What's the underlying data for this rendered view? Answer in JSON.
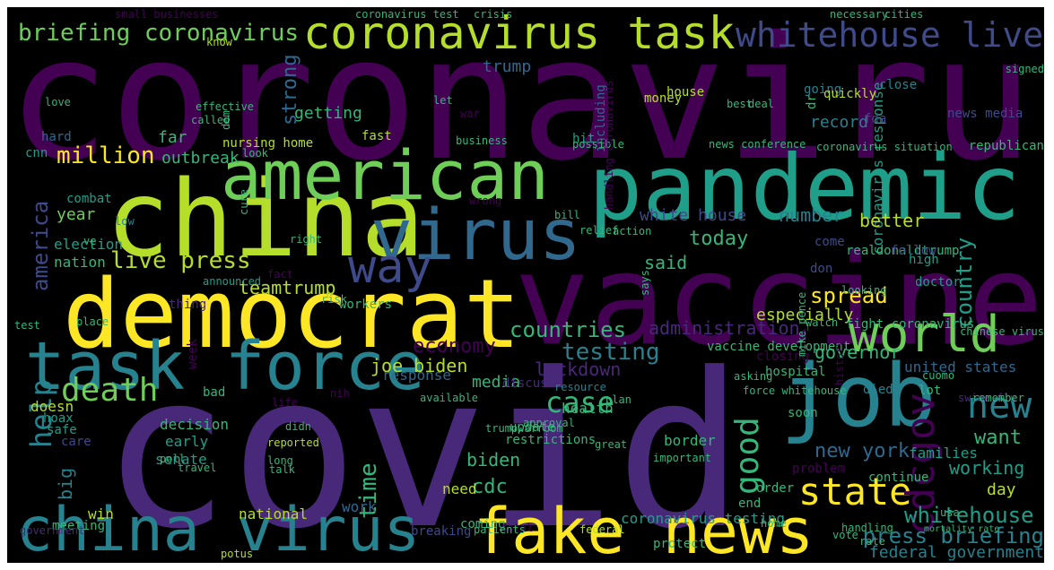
{
  "image": {
    "background": "#000000",
    "palette": {
      "P": "#440154",
      "I": "#482878",
      "B": "#3e4a89",
      "S": "#31688e",
      "T": "#26828e",
      "G": "#1f9e89",
      "L": "#35b779",
      "Y": "#6ece58",
      "K": "#b5de2b",
      "F": "#fde725"
    },
    "words": [
      {
        "t": "coronavirus",
        "c": "P"
      },
      {
        "t": "covid",
        "c": "I"
      },
      {
        "t": "vaccine",
        "c": "P"
      },
      {
        "t": "china",
        "c": "K"
      },
      {
        "t": "pandemic",
        "c": "G"
      },
      {
        "t": "democrat",
        "c": "F"
      },
      {
        "t": "american",
        "c": "Y"
      },
      {
        "t": "virus",
        "c": "S"
      },
      {
        "t": "task force",
        "c": "T"
      },
      {
        "t": "job",
        "c": "T"
      },
      {
        "t": "china virus",
        "c": "T"
      },
      {
        "t": "fake news",
        "c": "F"
      },
      {
        "t": "world",
        "c": "Y"
      },
      {
        "t": "coronavirus task",
        "c": "K"
      },
      {
        "t": "whitehouse live",
        "c": "B"
      },
      {
        "t": "briefing coronavirus",
        "c": "Y"
      },
      {
        "t": "state",
        "c": "F"
      },
      {
        "t": "new",
        "c": "T"
      },
      {
        "t": "way",
        "c": "B"
      },
      {
        "t": "death",
        "c": "Y"
      },
      {
        "t": "cdcgov",
        "c": "P"
      },
      {
        "t": "good",
        "c": "L"
      },
      {
        "t": "help",
        "c": "T"
      },
      {
        "t": "live press",
        "c": "K"
      },
      {
        "t": "case",
        "c": "L"
      },
      {
        "t": "million",
        "c": "F"
      },
      {
        "t": "testing",
        "c": "T"
      },
      {
        "t": "whitehouse",
        "c": "G"
      },
      {
        "t": "press briefing",
        "c": "T"
      },
      {
        "t": "federal government",
        "c": "T"
      },
      {
        "t": "america",
        "c": "B"
      },
      {
        "t": "spread",
        "c": "F"
      },
      {
        "t": "countries",
        "c": "L"
      },
      {
        "t": "economy",
        "c": "P"
      },
      {
        "t": "administration",
        "c": "I"
      },
      {
        "t": "lockdown",
        "c": "I"
      },
      {
        "t": "joe biden",
        "c": "K"
      },
      {
        "t": "today",
        "c": "L"
      },
      {
        "t": "number",
        "c": "T"
      },
      {
        "t": "country",
        "c": "G"
      },
      {
        "t": "coronavirus response",
        "c": "G"
      },
      {
        "t": "new york",
        "c": "S"
      },
      {
        "t": "want",
        "c": "L"
      },
      {
        "t": "working",
        "c": "G"
      },
      {
        "t": "time",
        "c": "L"
      },
      {
        "t": "biden",
        "c": "L"
      },
      {
        "t": "cdc",
        "c": "L"
      },
      {
        "t": "big",
        "c": "T"
      },
      {
        "t": "strong",
        "c": "S"
      },
      {
        "t": "trump",
        "c": "S"
      },
      {
        "t": "governor",
        "c": "L"
      },
      {
        "t": "united states",
        "c": "S"
      },
      {
        "t": "getting",
        "c": "L"
      },
      {
        "t": "record",
        "c": "T"
      },
      {
        "t": "outbreak",
        "c": "L"
      },
      {
        "t": "far",
        "c": "L"
      },
      {
        "t": "fast",
        "c": "K"
      },
      {
        "t": "year",
        "c": "Y"
      },
      {
        "t": "said",
        "c": "L"
      },
      {
        "t": "better",
        "c": "K"
      },
      {
        "t": "white house",
        "c": "B"
      },
      {
        "t": "teamtrump",
        "c": "K"
      },
      {
        "t": "especially",
        "c": "K"
      },
      {
        "t": "response",
        "c": "S"
      },
      {
        "t": "media",
        "c": "L"
      },
      {
        "t": "need",
        "c": "K"
      },
      {
        "t": "work",
        "c": "S"
      },
      {
        "t": "coronavirus testing",
        "c": "G"
      },
      {
        "t": "border",
        "c": "L"
      },
      {
        "t": "day",
        "c": "K"
      },
      {
        "t": "families",
        "c": "G"
      },
      {
        "t": "win",
        "c": "K"
      },
      {
        "t": "national",
        "c": "K"
      },
      {
        "t": "election",
        "c": "G"
      },
      {
        "t": "nation",
        "c": "L"
      },
      {
        "t": "health",
        "c": "L"
      },
      {
        "t": "senate",
        "c": "G"
      },
      {
        "t": "early",
        "c": "G"
      },
      {
        "t": "decision",
        "c": "L"
      },
      {
        "t": "doesn",
        "c": "K"
      },
      {
        "t": "hoax",
        "c": "G"
      },
      {
        "t": "safe",
        "c": "G"
      },
      {
        "t": "care",
        "c": "B"
      },
      {
        "t": "money",
        "c": "K"
      },
      {
        "t": "house",
        "c": "K"
      },
      {
        "t": "hit",
        "c": "G"
      },
      {
        "t": "nursing home",
        "c": "K"
      },
      {
        "t": "including",
        "c": "S"
      },
      {
        "t": "close",
        "c": "T"
      },
      {
        "t": "going",
        "c": "T"
      },
      {
        "t": "dr",
        "c": "L"
      },
      {
        "t": "quickly",
        "c": "K"
      },
      {
        "t": "fda",
        "c": "B"
      },
      {
        "t": "news media",
        "c": "B"
      },
      {
        "t": "cnn",
        "c": "G"
      },
      {
        "t": "hard",
        "c": "S"
      },
      {
        "t": "combat",
        "c": "G"
      },
      {
        "t": "coming",
        "c": "L"
      },
      {
        "t": "thing",
        "c": "I"
      },
      {
        "t": "workers",
        "c": "L"
      },
      {
        "t": "week",
        "c": "P"
      },
      {
        "t": "discuss",
        "c": "I"
      },
      {
        "t": "meeting",
        "c": "L"
      },
      {
        "t": "breaking",
        "c": "B"
      },
      {
        "t": "republican",
        "c": "L"
      },
      {
        "t": "realdonaldtrump",
        "c": "L"
      },
      {
        "t": "high",
        "c": "G"
      },
      {
        "t": "doctor",
        "c": "G"
      },
      {
        "t": "come",
        "c": "B"
      },
      {
        "t": "don",
        "c": "B"
      },
      {
        "t": "died",
        "c": "T"
      },
      {
        "t": "follow",
        "c": "B"
      },
      {
        "t": "vaccine development",
        "c": "L"
      },
      {
        "t": "fight coronavirus",
        "c": "L"
      },
      {
        "t": "closing",
        "c": "P"
      },
      {
        "t": "hospital",
        "c": "L"
      },
      {
        "t": "cuomo",
        "c": "L"
      },
      {
        "t": "lot",
        "c": "L"
      },
      {
        "t": "swine flu",
        "c": "I"
      },
      {
        "t": "remember",
        "c": "L"
      },
      {
        "t": "force whitehouse",
        "c": "L"
      },
      {
        "t": "soon",
        "c": "L"
      },
      {
        "t": "update",
        "c": "L"
      },
      {
        "t": "restrictions",
        "c": "L"
      },
      {
        "t": "resource",
        "c": "T"
      },
      {
        "t": "plan",
        "c": "L"
      },
      {
        "t": "approval",
        "c": "L"
      },
      {
        "t": "available",
        "c": "L"
      },
      {
        "t": "great",
        "c": "L"
      },
      {
        "t": "reported",
        "c": "K"
      },
      {
        "t": "important",
        "c": "L"
      },
      {
        "t": "problem",
        "c": "P"
      },
      {
        "t": "continue",
        "c": "L"
      },
      {
        "t": "order",
        "c": "L"
      },
      {
        "t": "end",
        "c": "L"
      },
      {
        "t": "usa",
        "c": "L"
      },
      {
        "t": "home",
        "c": "L"
      },
      {
        "t": "handling",
        "c": "L"
      },
      {
        "t": "vote",
        "c": "L"
      },
      {
        "t": "protect",
        "c": "L"
      },
      {
        "t": "potus",
        "c": "K"
      },
      {
        "t": "federal",
        "c": "K"
      },
      {
        "t": "total",
        "c": "P"
      },
      {
        "t": "patients",
        "c": "L"
      },
      {
        "t": "rate",
        "c": "L"
      },
      {
        "t": "mortality rate",
        "c": "L"
      },
      {
        "t": "government",
        "c": "I"
      },
      {
        "t": "poll",
        "c": "L"
      },
      {
        "t": "travel",
        "c": "L"
      },
      {
        "t": "long",
        "c": "L"
      },
      {
        "t": "talk",
        "c": "L"
      },
      {
        "t": "bad",
        "c": "L"
      },
      {
        "t": "life",
        "c": "P"
      },
      {
        "t": "didn",
        "c": "L"
      },
      {
        "t": "nih",
        "c": "P"
      },
      {
        "t": "trumpwarroom",
        "c": "L"
      },
      {
        "t": "fact",
        "c": "P"
      },
      {
        "t": "risk",
        "c": "L"
      },
      {
        "t": "low",
        "c": "T"
      },
      {
        "t": "cure",
        "c": "L"
      },
      {
        "t": "announced",
        "c": "G"
      },
      {
        "t": "test",
        "c": "L"
      },
      {
        "t": "ve",
        "c": "L"
      },
      {
        "t": "place",
        "c": "L"
      },
      {
        "t": "wrong",
        "c": "P"
      },
      {
        "t": "right",
        "c": "L"
      },
      {
        "t": "bill",
        "c": "L"
      },
      {
        "t": "relief",
        "c": "L"
      },
      {
        "t": "action",
        "c": "L"
      },
      {
        "t": "says",
        "c": "L"
      },
      {
        "t": "watch",
        "c": "L"
      },
      {
        "t": "asking",
        "c": "L"
      },
      {
        "t": "history",
        "c": "P"
      },
      {
        "t": "mike_pence",
        "c": "L"
      },
      {
        "t": "looking",
        "c": "L"
      },
      {
        "t": "chinese virus",
        "c": "L"
      },
      {
        "t": "possible",
        "c": "L"
      },
      {
        "t": "business",
        "c": "L"
      },
      {
        "t": "news conference",
        "c": "L"
      },
      {
        "t": "coronavirus situation",
        "c": "L"
      },
      {
        "t": "handling coronavirus",
        "c": "P"
      },
      {
        "t": "small businesses",
        "c": "P"
      },
      {
        "t": "coronavirus test",
        "c": "L"
      },
      {
        "t": "crisis",
        "c": "L"
      },
      {
        "t": "necessary",
        "c": "L"
      },
      {
        "t": "cities",
        "c": "L"
      },
      {
        "t": "know",
        "c": "K"
      },
      {
        "t": "step",
        "c": "P"
      },
      {
        "t": "signed",
        "c": "L"
      },
      {
        "t": "love",
        "c": "L"
      },
      {
        "t": "effective",
        "c": "L"
      },
      {
        "t": "dem",
        "c": "L"
      },
      {
        "t": "let",
        "c": "L"
      },
      {
        "t": "look",
        "c": "L"
      },
      {
        "t": "war",
        "c": "P"
      },
      {
        "t": "called",
        "c": "L"
      },
      {
        "t": "best",
        "c": "L"
      },
      {
        "t": "deal",
        "c": "L"
      }
    ]
  }
}
